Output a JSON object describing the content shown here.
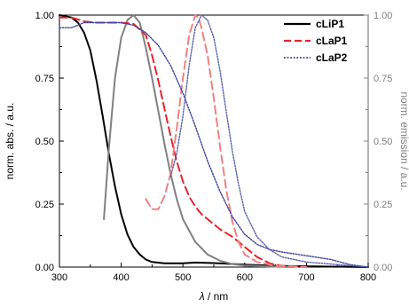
{
  "chart_data": {
    "type": "line",
    "xlabel_symbol": "λ",
    "xlabel_unit": " / nm",
    "ylabel_left": "norm. abs. / a.u.",
    "ylabel_right": "norm. emission / a.u.",
    "xlim": [
      300,
      800
    ],
    "ylim": [
      0,
      1
    ],
    "x_ticks": [
      300,
      400,
      500,
      600,
      700,
      800
    ],
    "y_ticks": [
      0,
      0.25,
      0.5,
      0.75,
      1
    ],
    "x_tick_labels": [
      "300",
      "400",
      "500",
      "600",
      "700",
      "800"
    ],
    "y_tick_labels": [
      "0.00",
      "0.25",
      "0.50",
      "0.75",
      "1.00"
    ],
    "legend_position": "top-right",
    "legend": [
      {
        "label": "cLiP1",
        "color": "#000000",
        "dash": "solid"
      },
      {
        "label": "cLaP1",
        "color": "#e8232a",
        "dash": "dashed"
      },
      {
        "label": "cLaP2",
        "color": "#3a3f9c",
        "dash": "dotted"
      }
    ],
    "series": [
      {
        "name": "cLiP1",
        "kind": "absorption",
        "color": "#000000",
        "dash": "solid",
        "points": [
          [
            300,
            1.0
          ],
          [
            320,
            0.99
          ],
          [
            330,
            0.97
          ],
          [
            340,
            0.93
          ],
          [
            350,
            0.86
          ],
          [
            360,
            0.74
          ],
          [
            370,
            0.6
          ],
          [
            380,
            0.45
          ],
          [
            390,
            0.32
          ],
          [
            400,
            0.21
          ],
          [
            410,
            0.13
          ],
          [
            420,
            0.08
          ],
          [
            430,
            0.05
          ],
          [
            440,
            0.03
          ],
          [
            450,
            0.02
          ],
          [
            470,
            0.015
          ],
          [
            500,
            0.015
          ],
          [
            520,
            0.018
          ],
          [
            550,
            0.016
          ],
          [
            600,
            0.01
          ],
          [
            650,
            0.005
          ],
          [
            700,
            0.003
          ],
          [
            800,
            0.0
          ]
        ]
      },
      {
        "name": "cLiP1",
        "kind": "emission",
        "color": "#808080",
        "dash": "solid",
        "points": [
          [
            372,
            0.19
          ],
          [
            380,
            0.47
          ],
          [
            390,
            0.75
          ],
          [
            400,
            0.91
          ],
          [
            410,
            0.98
          ],
          [
            420,
            1.0
          ],
          [
            430,
            0.97
          ],
          [
            440,
            0.87
          ],
          [
            450,
            0.75
          ],
          [
            460,
            0.62
          ],
          [
            470,
            0.49
          ],
          [
            480,
            0.37
          ],
          [
            490,
            0.27
          ],
          [
            500,
            0.19
          ],
          [
            520,
            0.1
          ],
          [
            540,
            0.05
          ],
          [
            560,
            0.025
          ],
          [
            580,
            0.012
          ],
          [
            600,
            0.006
          ],
          [
            640,
            0.002
          ],
          [
            680,
            0.0
          ]
        ]
      },
      {
        "name": "cLaP1",
        "kind": "absorption",
        "color": "#e8232a",
        "dash": "dashed",
        "points": [
          [
            300,
            0.99
          ],
          [
            320,
            0.99
          ],
          [
            340,
            0.975
          ],
          [
            360,
            0.97
          ],
          [
            380,
            0.97
          ],
          [
            400,
            0.97
          ],
          [
            420,
            0.965
          ],
          [
            440,
            0.92
          ],
          [
            450,
            0.84
          ],
          [
            460,
            0.74
          ],
          [
            470,
            0.63
          ],
          [
            480,
            0.52
          ],
          [
            490,
            0.42
          ],
          [
            500,
            0.34
          ],
          [
            510,
            0.28
          ],
          [
            520,
            0.24
          ],
          [
            530,
            0.21
          ],
          [
            540,
            0.19
          ],
          [
            560,
            0.15
          ],
          [
            580,
            0.12
          ],
          [
            600,
            0.08
          ],
          [
            620,
            0.04
          ],
          [
            640,
            0.015
          ],
          [
            660,
            0.005
          ],
          [
            700,
            0.0
          ]
        ]
      },
      {
        "name": "cLaP1",
        "kind": "emission",
        "color": "#f08080",
        "dash": "dashed",
        "points": [
          [
            440,
            0.27
          ],
          [
            450,
            0.23
          ],
          [
            460,
            0.23
          ],
          [
            470,
            0.28
          ],
          [
            480,
            0.37
          ],
          [
            490,
            0.55
          ],
          [
            500,
            0.75
          ],
          [
            510,
            0.92
          ],
          [
            520,
            1.0
          ],
          [
            525,
            0.99
          ],
          [
            530,
            0.95
          ],
          [
            540,
            0.84
          ],
          [
            550,
            0.67
          ],
          [
            560,
            0.48
          ],
          [
            570,
            0.31
          ],
          [
            580,
            0.18
          ],
          [
            590,
            0.1
          ],
          [
            600,
            0.05
          ],
          [
            620,
            0.02
          ],
          [
            650,
            0.005
          ],
          [
            700,
            0.0
          ]
        ]
      },
      {
        "name": "cLaP2",
        "kind": "absorption",
        "color": "#3a3f9c",
        "dash": "dotted",
        "points": [
          [
            300,
            0.95
          ],
          [
            320,
            0.95
          ],
          [
            340,
            0.97
          ],
          [
            360,
            0.97
          ],
          [
            380,
            0.97
          ],
          [
            400,
            0.97
          ],
          [
            420,
            0.96
          ],
          [
            440,
            0.93
          ],
          [
            460,
            0.88
          ],
          [
            480,
            0.8
          ],
          [
            500,
            0.69
          ],
          [
            520,
            0.56
          ],
          [
            540,
            0.42
          ],
          [
            560,
            0.3
          ],
          [
            580,
            0.2
          ],
          [
            600,
            0.13
          ],
          [
            620,
            0.09
          ],
          [
            640,
            0.07
          ],
          [
            660,
            0.06
          ],
          [
            700,
            0.045
          ],
          [
            740,
            0.03
          ],
          [
            770,
            0.01
          ],
          [
            800,
            0.0
          ]
        ]
      },
      {
        "name": "cLaP2",
        "kind": "emission",
        "color": "#5a5fb0",
        "dash": "dotted",
        "points": [
          [
            480,
            0.36
          ],
          [
            490,
            0.45
          ],
          [
            500,
            0.6
          ],
          [
            510,
            0.8
          ],
          [
            520,
            0.95
          ],
          [
            530,
            1.0
          ],
          [
            540,
            0.98
          ],
          [
            550,
            0.91
          ],
          [
            560,
            0.78
          ],
          [
            570,
            0.62
          ],
          [
            580,
            0.46
          ],
          [
            590,
            0.33
          ],
          [
            600,
            0.22
          ],
          [
            620,
            0.12
          ],
          [
            640,
            0.07
          ],
          [
            660,
            0.04
          ],
          [
            700,
            0.02
          ],
          [
            750,
            0.01
          ],
          [
            800,
            0.0
          ]
        ]
      }
    ]
  }
}
